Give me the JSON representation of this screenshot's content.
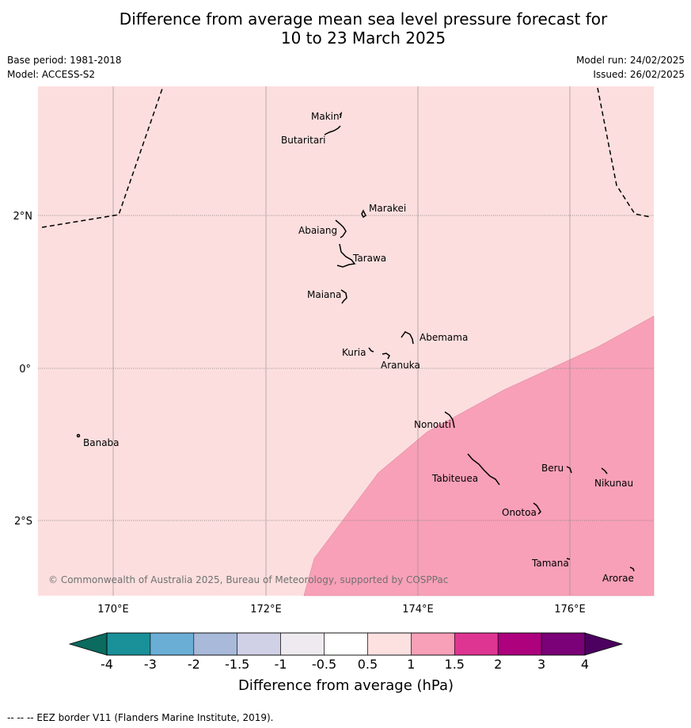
{
  "title_line1": "Difference from average mean sea level pressure forecast for",
  "title_line2": "10 to 23 March 2025",
  "base_period": "Base period: 1981-2018",
  "model": "Model: ACCESS-S2",
  "model_run": "Model run: 24/02/2025",
  "issued": "Issued: 26/02/2025",
  "copyright": "© Commonwealth of Australia 2025, Bureau of Meteorology, supported by COSPPac",
  "footer": "-- -- -- EEZ border V11 (Flanders Marine Institute, 2019).",
  "colors": {
    "background_anomaly": "#fcdede",
    "high_anomaly": "#f8a0b8",
    "eez_line": "#000000"
  },
  "axes": {
    "x_ticks": [
      "170°E",
      "172°E",
      "174°E",
      "176°E"
    ],
    "y_ticks": [
      "2°N",
      "0°",
      "2°S"
    ],
    "lon_range": [
      169,
      177.1
    ],
    "lat_range": [
      -3.0,
      3.4
    ]
  },
  "islands": [
    {
      "name": "Makin"
    },
    {
      "name": "Butaritari"
    },
    {
      "name": "Marakei"
    },
    {
      "name": "Abaiang"
    },
    {
      "name": "Tarawa"
    },
    {
      "name": "Maiana"
    },
    {
      "name": "Abemama"
    },
    {
      "name": "Kuria"
    },
    {
      "name": "Aranuka"
    },
    {
      "name": "Nonouti"
    },
    {
      "name": "Banaba"
    },
    {
      "name": "Tabiteuea"
    },
    {
      "name": "Beru"
    },
    {
      "name": "Nikunau"
    },
    {
      "name": "Onotoa"
    },
    {
      "name": "Tamana"
    },
    {
      "name": "Arorae"
    }
  ],
  "colorbar": {
    "label": "Difference from average (hPa)",
    "ticks": [
      "-4",
      "-3",
      "-2",
      "-1.5",
      "-1",
      "-0.5",
      "0.5",
      "1",
      "1.5",
      "2",
      "3",
      "4"
    ],
    "colors": [
      "#1a9098",
      "#6aaed6",
      "#a8b9da",
      "#d0d0e6",
      "#eeeaef",
      "#ffffff",
      "#fde0e0",
      "#f8a0b8",
      "#df3592",
      "#ad017e",
      "#7a0177"
    ],
    "under_color": "#0a6b5e",
    "over_color": "#4c0060"
  }
}
